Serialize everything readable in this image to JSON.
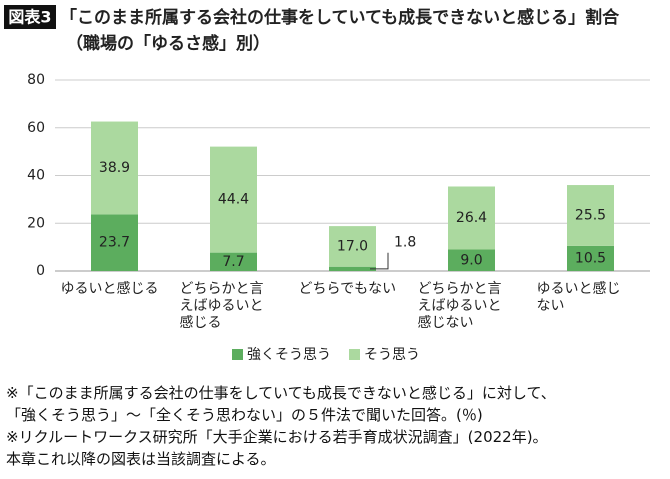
{
  "chart_data": {
    "type": "stacked_bar",
    "figure_label": "図表3",
    "title": "「このまま所属する会社の仕事をしていても成長できないと感じる」割合",
    "subtitle": "（職場の「ゆるさ感」別）",
    "categories": [
      "ゆるいと感じる",
      "どちらかと言えばゆるいと感じる",
      "どちらでもない",
      "どちらかと言えばゆるいと感じない",
      "ゆるいと感じない"
    ],
    "series": [
      {
        "name": "強くそう思う",
        "color": "#5cad5e",
        "values": [
          23.7,
          7.7,
          1.8,
          9.0,
          10.5
        ],
        "value_labels": [
          "23.7",
          "7.7",
          "1.8",
          "9.0",
          "10.5"
        ]
      },
      {
        "name": "そう思う",
        "color": "#abd99f",
        "values": [
          38.9,
          44.4,
          17.0,
          26.4,
          25.5
        ],
        "value_labels": [
          "38.9",
          "44.4",
          "17.0",
          "26.4",
          "25.5"
        ]
      }
    ],
    "ylim": [
      0,
      80
    ],
    "yticks": [
      0,
      20,
      40,
      60,
      80
    ],
    "grid": true,
    "legend": "bottom",
    "notes": [
      "※「このまま所属する会社の仕事をしていても成長できないと感じる」に対して、",
      "「強くそう思う」〜「全くそう思わない」の５件法で聞いた回答。(％)",
      "※リクルートワークス研究所「大手企業における若手育成状況調査」(2022年)。",
      "本章これ以降の図表は当該調査による。"
    ]
  }
}
